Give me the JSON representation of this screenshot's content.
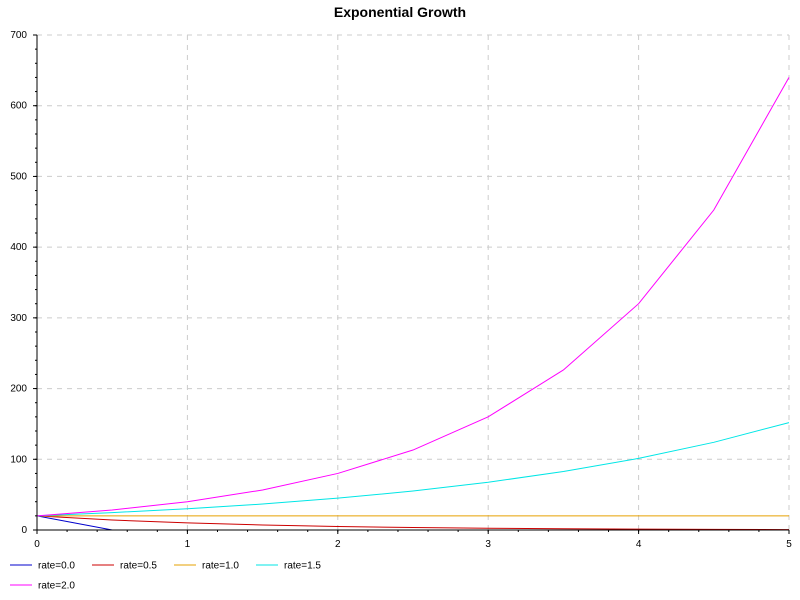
{
  "chart_data": {
    "type": "line",
    "title": "Exponential Growth",
    "xlabel": "",
    "ylabel": "",
    "xlim": [
      0,
      5
    ],
    "ylim": [
      0,
      700
    ],
    "x_ticks": [
      "0",
      "1",
      "2",
      "3",
      "4",
      "5"
    ],
    "y_ticks": [
      "0",
      "100",
      "200",
      "300",
      "400",
      "500",
      "600",
      "700"
    ],
    "grid": true,
    "legend_position": "bottom",
    "x": [
      0,
      0.5,
      1,
      1.5,
      2,
      2.5,
      3,
      3.5,
      4,
      4.5,
      5
    ],
    "series": [
      {
        "name": "rate=0.0",
        "color": "#0000cc",
        "values": [
          20,
          0,
          0,
          0,
          0,
          0,
          0,
          0,
          0,
          0,
          0
        ]
      },
      {
        "name": "rate=0.5",
        "color": "#cc0000",
        "values": [
          20,
          14.1,
          10,
          7.1,
          5,
          3.5,
          2.5,
          1.8,
          1.25,
          0.9,
          0.6
        ]
      },
      {
        "name": "rate=1.0",
        "color": "#e6a000",
        "values": [
          20,
          20,
          20,
          20,
          20,
          20,
          20,
          20,
          20,
          20,
          20
        ]
      },
      {
        "name": "rate=1.5",
        "color": "#00e6e6",
        "values": [
          20,
          24.6,
          30,
          36.7,
          45,
          55.1,
          67.5,
          82.7,
          101.25,
          124,
          151.9
        ]
      },
      {
        "name": "rate=2.0",
        "color": "#ff00ff",
        "values": [
          20,
          28.3,
          40,
          56.6,
          80,
          113.1,
          160,
          226.3,
          320,
          452.5,
          640
        ]
      }
    ]
  }
}
